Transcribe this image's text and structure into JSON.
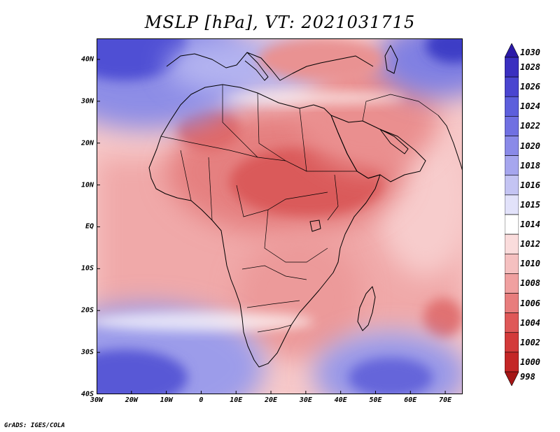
{
  "title": "MSLP [hPa], VT: 2021031715",
  "credit": "GrADS: IGES/COLA",
  "map": {
    "variable": "Mean sea level pressure",
    "units": "hPa",
    "valid_time": "2021031715",
    "lon_range": [
      -30,
      75
    ],
    "lat_range": [
      -40,
      45
    ],
    "lat_ticks": [
      {
        "value": 40,
        "label": "40N"
      },
      {
        "value": 30,
        "label": "30N"
      },
      {
        "value": 20,
        "label": "20N"
      },
      {
        "value": 10,
        "label": "10N"
      },
      {
        "value": 0,
        "label": "EQ"
      },
      {
        "value": -10,
        "label": "10S"
      },
      {
        "value": -20,
        "label": "20S"
      },
      {
        "value": -30,
        "label": "30S"
      },
      {
        "value": -40,
        "label": "40S"
      }
    ],
    "lon_ticks": [
      {
        "value": -30,
        "label": "30W"
      },
      {
        "value": -20,
        "label": "20W"
      },
      {
        "value": -10,
        "label": "10W"
      },
      {
        "value": 0,
        "label": "0"
      },
      {
        "value": 10,
        "label": "10E"
      },
      {
        "value": 20,
        "label": "20E"
      },
      {
        "value": 30,
        "label": "30E"
      },
      {
        "value": 40,
        "label": "40E"
      },
      {
        "value": 50,
        "label": "50E"
      },
      {
        "value": 60,
        "label": "60E"
      },
      {
        "value": 70,
        "label": "70E"
      }
    ],
    "pressure_features": [
      {
        "name": "High over northern Atlantic/Europe",
        "lon": -22,
        "lat": 42,
        "value": 1026
      },
      {
        "name": "High over Black Sea/Caspian",
        "lon": 60,
        "lat": 42,
        "value": 1024
      },
      {
        "name": "Subtropical high over South Atlantic",
        "lon": -22,
        "lat": -36,
        "value": 1026
      },
      {
        "name": "High over southern Indian Ocean",
        "lon": 55,
        "lat": -34,
        "value": 1024
      },
      {
        "name": "Heat low over Sahel/Sudan",
        "lon": 25,
        "lat": 12,
        "value": 1004
      },
      {
        "name": "Low over Mozambique Channel area",
        "lon": 68,
        "lat": -22,
        "value": 1006
      },
      {
        "name": "Low over Algeria interior",
        "lon": 1,
        "lat": 24,
        "value": 1005
      }
    ]
  },
  "colorbar": {
    "levels": [
      "1030",
      "1028",
      "1026",
      "1024",
      "1022",
      "1020",
      "1018",
      "1016",
      "1015",
      "1014",
      "1012",
      "1010",
      "1008",
      "1006",
      "1004",
      "1002",
      "1000",
      "998"
    ],
    "colors": [
      "#2b1aa8",
      "#3a2fc0",
      "#4a45d0",
      "#5d5fdc",
      "#7070e2",
      "#8a8ae8",
      "#a6a6ee",
      "#c4c4f3",
      "#e2e2fa",
      "#ffffff",
      "#fadcdc",
      "#f5c0c0",
      "#f0a0a0",
      "#e87d7d",
      "#df5858",
      "#d33a3a",
      "#c42626",
      "#a51616"
    ]
  }
}
